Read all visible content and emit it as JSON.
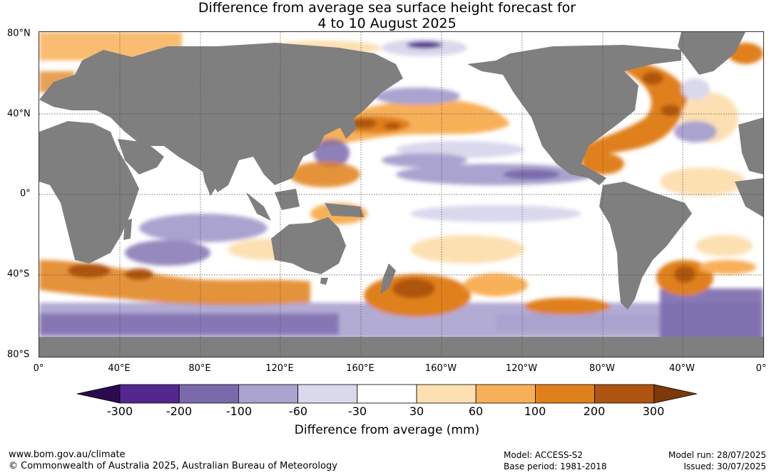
{
  "title": {
    "line1": "Difference from average sea surface height forecast for",
    "line2": "4 to 10 August 2025"
  },
  "map": {
    "lat_labels": [
      "80°N",
      "40°N",
      "0°",
      "40°S",
      "80°S"
    ],
    "lon_labels": [
      "0°",
      "40°E",
      "80°E",
      "120°E",
      "160°E",
      "160°W",
      "120°W",
      "80°W",
      "40°W",
      "0°"
    ],
    "colors": {
      "land": "#7f7f7f",
      "ocean_neutral": "#ffffff",
      "grid": "#444444"
    }
  },
  "colorbar": {
    "ticks": [
      "-300",
      "-200",
      "-100",
      "-60",
      "-30",
      "30",
      "60",
      "100",
      "200",
      "300"
    ],
    "colors": [
      "#2d0a4e",
      "#54278f",
      "#7a6aac",
      "#aaa3cf",
      "#d9d8ec",
      "#ffffff",
      "#fde0b2",
      "#f8b058",
      "#e0801a",
      "#ae5410",
      "#7c3a08"
    ],
    "label": "Difference from average (mm)"
  },
  "footer": {
    "website": "www.bom.gov.au/climate",
    "copyright": "© Commonwealth of Australia 2025, Australian Bureau of Meteorology",
    "model": "Model: ACCESS-S2",
    "base_period": "Base period: 1981-2018",
    "model_run": "Model run: 28/07/2025",
    "issued": "Issued: 30/07/2025"
  }
}
